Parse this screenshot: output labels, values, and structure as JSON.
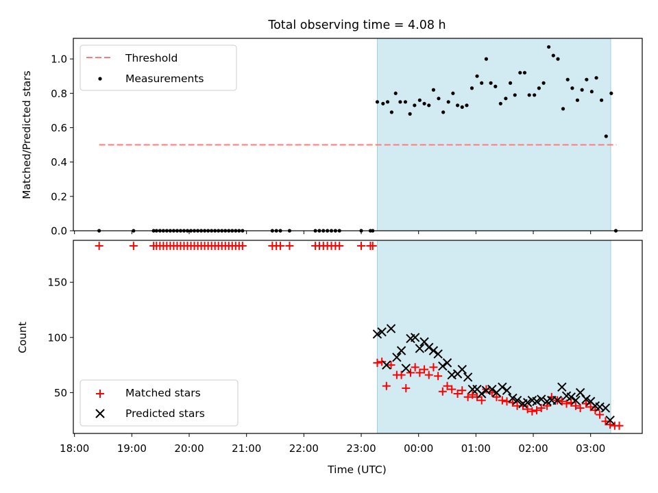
{
  "chart_data": [
    {
      "type": "scatter",
      "title": "Total observing time = 4.08 h",
      "ylabel": "Matched/Predicted stars",
      "xlabel": "",
      "xunit": "hours since 18:00 UTC",
      "xlim": [
        -0.02,
        9.9
      ],
      "ylim": [
        0.0,
        1.12
      ],
      "yticks": [
        0.0,
        0.2,
        0.4,
        0.6,
        0.8,
        1.0
      ],
      "ytick_labels": [
        "0.0",
        "0.2",
        "0.4",
        "0.6",
        "0.8",
        "1.0"
      ],
      "grid": false,
      "legend_position": "upper-left",
      "shaded_span": [
        5.28,
        9.35
      ],
      "threshold": {
        "name": "Threshold",
        "y": 0.5,
        "x_range": [
          0.43,
          9.45
        ],
        "color": "#ff7b7b"
      },
      "series": [
        {
          "name": "Measurements",
          "color": "#000000",
          "points": [
            [
              0.43,
              0
            ],
            [
              1.03,
              0
            ],
            [
              1.38,
              0
            ],
            [
              1.43,
              0
            ],
            [
              1.49,
              0
            ],
            [
              1.55,
              0
            ],
            [
              1.61,
              0
            ],
            [
              1.67,
              0
            ],
            [
              1.73,
              0
            ],
            [
              1.79,
              0
            ],
            [
              1.85,
              0
            ],
            [
              1.91,
              0
            ],
            [
              1.97,
              0
            ],
            [
              2.03,
              0
            ],
            [
              2.09,
              0
            ],
            [
              2.15,
              0
            ],
            [
              2.21,
              0
            ],
            [
              2.27,
              0
            ],
            [
              2.33,
              0
            ],
            [
              2.39,
              0
            ],
            [
              2.45,
              0
            ],
            [
              2.51,
              0
            ],
            [
              2.57,
              0
            ],
            [
              2.63,
              0
            ],
            [
              2.69,
              0
            ],
            [
              2.75,
              0
            ],
            [
              2.81,
              0
            ],
            [
              2.87,
              0
            ],
            [
              2.93,
              0
            ],
            [
              3.45,
              0
            ],
            [
              3.52,
              0
            ],
            [
              3.59,
              0
            ],
            [
              3.75,
              0
            ],
            [
              4.2,
              0
            ],
            [
              4.27,
              0
            ],
            [
              4.34,
              0
            ],
            [
              4.41,
              0
            ],
            [
              4.48,
              0
            ],
            [
              4.55,
              0
            ],
            [
              4.62,
              0
            ],
            [
              5.0,
              0
            ],
            [
              5.16,
              0
            ],
            [
              5.2,
              0
            ],
            [
              5.28,
              0.75
            ],
            [
              5.38,
              0.74
            ],
            [
              5.46,
              0.75
            ],
            [
              5.53,
              0.69
            ],
            [
              5.6,
              0.8
            ],
            [
              5.68,
              0.75
            ],
            [
              5.77,
              0.75
            ],
            [
              5.85,
              0.68
            ],
            [
              5.93,
              0.73
            ],
            [
              6.02,
              0.76
            ],
            [
              6.1,
              0.74
            ],
            [
              6.18,
              0.73
            ],
            [
              6.26,
              0.82
            ],
            [
              6.35,
              0.77
            ],
            [
              6.43,
              0.69
            ],
            [
              6.52,
              0.75
            ],
            [
              6.6,
              0.8
            ],
            [
              6.68,
              0.73
            ],
            [
              6.76,
              0.72
            ],
            [
              6.84,
              0.73
            ],
            [
              6.93,
              0.83
            ],
            [
              7.02,
              0.9
            ],
            [
              7.1,
              0.86
            ],
            [
              7.18,
              1.0
            ],
            [
              7.26,
              0.86
            ],
            [
              7.34,
              0.84
            ],
            [
              7.43,
              0.74
            ],
            [
              7.52,
              0.77
            ],
            [
              7.6,
              0.86
            ],
            [
              7.68,
              0.79
            ],
            [
              7.77,
              0.92
            ],
            [
              7.85,
              0.92
            ],
            [
              7.93,
              0.79
            ],
            [
              8.02,
              0.79
            ],
            [
              8.1,
              0.83
            ],
            [
              8.18,
              0.86
            ],
            [
              8.27,
              1.07
            ],
            [
              8.35,
              1.02
            ],
            [
              8.43,
              1.0
            ],
            [
              8.52,
              0.71
            ],
            [
              8.6,
              0.88
            ],
            [
              8.68,
              0.83
            ],
            [
              8.77,
              0.76
            ],
            [
              8.85,
              0.82
            ],
            [
              8.93,
              0.88
            ],
            [
              9.02,
              0.81
            ],
            [
              9.1,
              0.89
            ],
            [
              9.19,
              0.76
            ],
            [
              9.27,
              0.55
            ],
            [
              9.36,
              0.8
            ],
            [
              9.44,
              0.0
            ]
          ]
        }
      ]
    },
    {
      "type": "scatter",
      "title": "",
      "xlabel": "Time (UTC)",
      "ylabel": "Count",
      "xunit": "hours since 18:00 UTC",
      "xlim": [
        -0.02,
        9.9
      ],
      "ylim": [
        13,
        188
      ],
      "xticks": [
        0,
        1,
        2,
        3,
        4,
        5,
        6,
        7,
        8,
        9
      ],
      "xtick_labels": [
        "18:00",
        "19:00",
        "20:00",
        "21:00",
        "22:00",
        "23:00",
        "00:00",
        "01:00",
        "02:00",
        "03:00"
      ],
      "yticks": [
        50,
        100,
        150
      ],
      "ytick_labels": [
        "50",
        "100",
        "150"
      ],
      "grid": false,
      "legend_position": "lower-left",
      "shaded_span": [
        5.28,
        9.35
      ],
      "series": [
        {
          "name": "Matched stars",
          "marker": "plus",
          "color": "#ff0000",
          "points": [
            [
              0.43,
              183
            ],
            [
              1.03,
              183
            ],
            [
              1.38,
              183
            ],
            [
              1.43,
              183
            ],
            [
              1.49,
              183
            ],
            [
              1.55,
              183
            ],
            [
              1.61,
              183
            ],
            [
              1.67,
              183
            ],
            [
              1.73,
              183
            ],
            [
              1.79,
              183
            ],
            [
              1.85,
              183
            ],
            [
              1.91,
              183
            ],
            [
              1.97,
              183
            ],
            [
              2.03,
              183
            ],
            [
              2.09,
              183
            ],
            [
              2.15,
              183
            ],
            [
              2.21,
              183
            ],
            [
              2.27,
              183
            ],
            [
              2.33,
              183
            ],
            [
              2.39,
              183
            ],
            [
              2.45,
              183
            ],
            [
              2.51,
              183
            ],
            [
              2.57,
              183
            ],
            [
              2.63,
              183
            ],
            [
              2.69,
              183
            ],
            [
              2.75,
              183
            ],
            [
              2.81,
              183
            ],
            [
              2.87,
              183
            ],
            [
              2.93,
              183
            ],
            [
              3.45,
              183
            ],
            [
              3.52,
              183
            ],
            [
              3.59,
              183
            ],
            [
              3.75,
              183
            ],
            [
              4.2,
              183
            ],
            [
              4.27,
              183
            ],
            [
              4.34,
              183
            ],
            [
              4.41,
              183
            ],
            [
              4.48,
              183
            ],
            [
              4.55,
              183
            ],
            [
              4.62,
              183
            ],
            [
              5.0,
              183
            ],
            [
              5.16,
              183
            ],
            [
              5.2,
              183
            ],
            [
              5.28,
              77
            ],
            [
              5.36,
              78
            ],
            [
              5.44,
              56
            ],
            [
              5.52,
              75
            ],
            [
              5.62,
              66
            ],
            [
              5.7,
              66
            ],
            [
              5.78,
              54
            ],
            [
              5.86,
              68
            ],
            [
              5.94,
              73
            ],
            [
              6.02,
              68
            ],
            [
              6.1,
              71
            ],
            [
              6.18,
              66
            ],
            [
              6.26,
              73
            ],
            [
              6.34,
              65
            ],
            [
              6.42,
              51
            ],
            [
              6.5,
              56
            ],
            [
              6.58,
              53
            ],
            [
              6.68,
              49
            ],
            [
              6.76,
              52
            ],
            [
              6.86,
              46
            ],
            [
              6.94,
              48
            ],
            [
              7.02,
              46
            ],
            [
              7.1,
              43
            ],
            [
              7.18,
              53
            ],
            [
              7.28,
              50
            ],
            [
              7.36,
              46
            ],
            [
              7.46,
              43
            ],
            [
              7.54,
              42
            ],
            [
              7.64,
              41
            ],
            [
              7.72,
              38
            ],
            [
              7.82,
              38
            ],
            [
              7.9,
              35
            ],
            [
              7.98,
              33
            ],
            [
              8.06,
              34
            ],
            [
              8.14,
              36
            ],
            [
              8.24,
              38
            ],
            [
              8.32,
              46
            ],
            [
              8.42,
              43
            ],
            [
              8.5,
              42
            ],
            [
              8.58,
              40
            ],
            [
              8.66,
              41
            ],
            [
              8.74,
              38
            ],
            [
              8.82,
              36
            ],
            [
              8.92,
              40
            ],
            [
              9.0,
              37
            ],
            [
              9.08,
              34
            ],
            [
              9.16,
              30
            ],
            [
              9.26,
              24
            ],
            [
              9.34,
              21
            ],
            [
              9.42,
              20
            ],
            [
              9.5,
              20
            ]
          ]
        },
        {
          "name": "Predicted stars",
          "marker": "x",
          "color": "#000000",
          "points": [
            [
              5.28,
              103
            ],
            [
              5.36,
              105
            ],
            [
              5.44,
              75
            ],
            [
              5.52,
              108
            ],
            [
              5.62,
              82
            ],
            [
              5.7,
              88
            ],
            [
              5.78,
              72
            ],
            [
              5.86,
              99
            ],
            [
              5.94,
              100
            ],
            [
              6.02,
              90
            ],
            [
              6.1,
              96
            ],
            [
              6.18,
              91
            ],
            [
              6.26,
              88
            ],
            [
              6.34,
              85
            ],
            [
              6.42,
              74
            ],
            [
              6.5,
              77
            ],
            [
              6.58,
              66
            ],
            [
              6.68,
              67
            ],
            [
              6.76,
              71
            ],
            [
              6.86,
              64
            ],
            [
              6.94,
              53
            ],
            [
              7.02,
              53
            ],
            [
              7.1,
              49
            ],
            [
              7.18,
              52
            ],
            [
              7.28,
              53
            ],
            [
              7.36,
              50
            ],
            [
              7.46,
              55
            ],
            [
              7.54,
              52
            ],
            [
              7.64,
              45
            ],
            [
              7.72,
              43
            ],
            [
              7.82,
              40
            ],
            [
              7.9,
              41
            ],
            [
              7.98,
              43
            ],
            [
              8.06,
              42
            ],
            [
              8.14,
              44
            ],
            [
              8.24,
              42
            ],
            [
              8.32,
              43
            ],
            [
              8.42,
              43
            ],
            [
              8.5,
              55
            ],
            [
              8.58,
              47
            ],
            [
              8.66,
              46
            ],
            [
              8.74,
              43
            ],
            [
              8.82,
              50
            ],
            [
              8.92,
              44
            ],
            [
              9.0,
              42
            ],
            [
              9.08,
              38
            ],
            [
              9.16,
              37
            ],
            [
              9.26,
              36
            ],
            [
              9.34,
              25
            ]
          ]
        }
      ]
    }
  ]
}
